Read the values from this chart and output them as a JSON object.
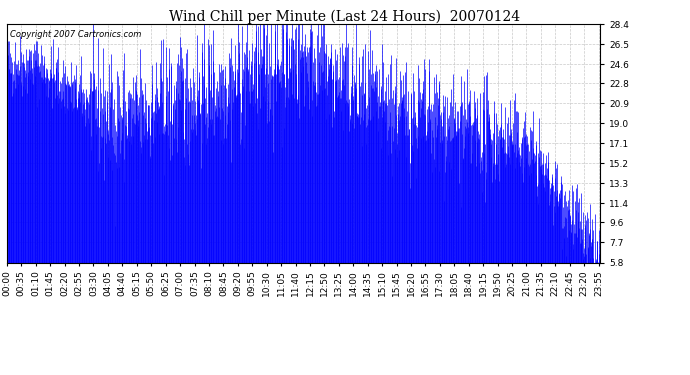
{
  "title": "Wind Chill per Minute (Last 24 Hours)  20070124",
  "copyright": "Copyright 2007 Cartronics.com",
  "yticks": [
    5.8,
    7.7,
    9.6,
    11.4,
    13.3,
    15.2,
    17.1,
    19.0,
    20.9,
    22.8,
    24.6,
    26.5,
    28.4
  ],
  "ylim": [
    5.8,
    28.4
  ],
  "line_color": "#0000ff",
  "bg_color": "#ffffff",
  "plot_bg_color": "#ffffff",
  "grid_color": "#bbbbbb",
  "title_fontsize": 10,
  "copyright_fontsize": 6,
  "tick_fontsize": 6.5,
  "xtick_interval": 35,
  "n_minutes": 1440
}
